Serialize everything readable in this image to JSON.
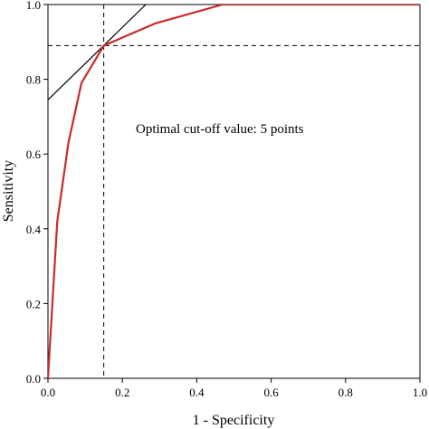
{
  "chart_data": {
    "type": "line",
    "xlabel": "1 - Specificity",
    "ylabel": "Sensitivity",
    "xlim": [
      0,
      1
    ],
    "ylim": [
      0,
      1
    ],
    "grid": false,
    "legend": "none",
    "x_ticks": [
      "0.0",
      "0.2",
      "0.4",
      "0.6",
      "0.8",
      "1.0"
    ],
    "y_ticks": [
      "0.0",
      "0.2",
      "0.4",
      "0.6",
      "0.8",
      "1.0"
    ],
    "annotation": "Optimal cut-off value: 5 points",
    "series": [
      {
        "color": "#cc2a2a",
        "x": [
          0.0,
          0.025,
          0.055,
          0.09,
          0.15,
          0.29,
          0.47,
          1.0
        ],
        "y": [
          0.0,
          0.42,
          0.63,
          0.79,
          0.89,
          0.95,
          1.0,
          1.0
        ]
      }
    ],
    "optimal_point": {
      "x": 0.15,
      "y": 0.89
    },
    "tangent_line": {
      "x": [
        0.0,
        0.263
      ],
      "y": [
        0.745,
        1.0
      ],
      "color": "#000000"
    },
    "reference_lines": {
      "vertical_x": 0.15,
      "horizontal_y": 0.89,
      "style": "dashed"
    }
  }
}
